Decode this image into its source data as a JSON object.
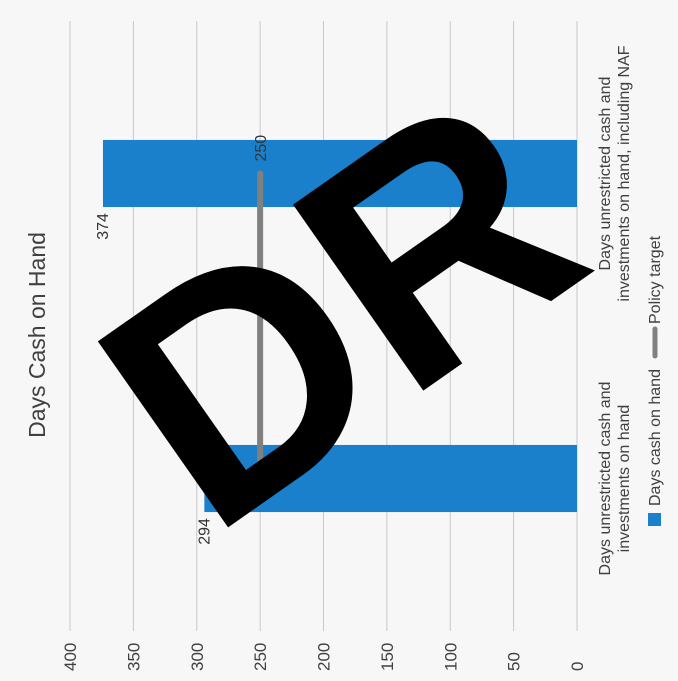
{
  "chart_data": {
    "type": "bar",
    "orientation": "vertical",
    "title": "Days Cash on Hand",
    "categories": [
      "Days unrestricted cash and investments on hand",
      "Days unrestricted cash and investments on hand, including NAF"
    ],
    "category_label_lines": [
      [
        "Days unrestricted cash and",
        "investments on hand"
      ],
      [
        "Days unrestricted cash and",
        "investments on hand, including NAF"
      ]
    ],
    "series": [
      {
        "name": "Days cash on hand",
        "type": "bar",
        "color": "#1a80cc",
        "values": [
          294,
          374
        ]
      },
      {
        "name": "Policy target",
        "type": "line",
        "color": "#808080",
        "values": [
          250,
          250
        ]
      }
    ],
    "data_labels": [
      "294",
      "374",
      "250"
    ],
    "ylim": [
      0,
      400
    ],
    "yticks": [
      0,
      50,
      100,
      150,
      200,
      250,
      300,
      350,
      400
    ],
    "ytick_labels": [
      "0",
      "50",
      "100",
      "150",
      "200",
      "250",
      "300",
      "350",
      "400"
    ],
    "grid": true,
    "legend": {
      "position": "bottom",
      "items": [
        "Days cash on hand",
        "Policy target"
      ]
    },
    "rotation": "image rotated 90 degrees counter-clockwise"
  },
  "watermark": {
    "text": "DR",
    "color": "#000000"
  }
}
